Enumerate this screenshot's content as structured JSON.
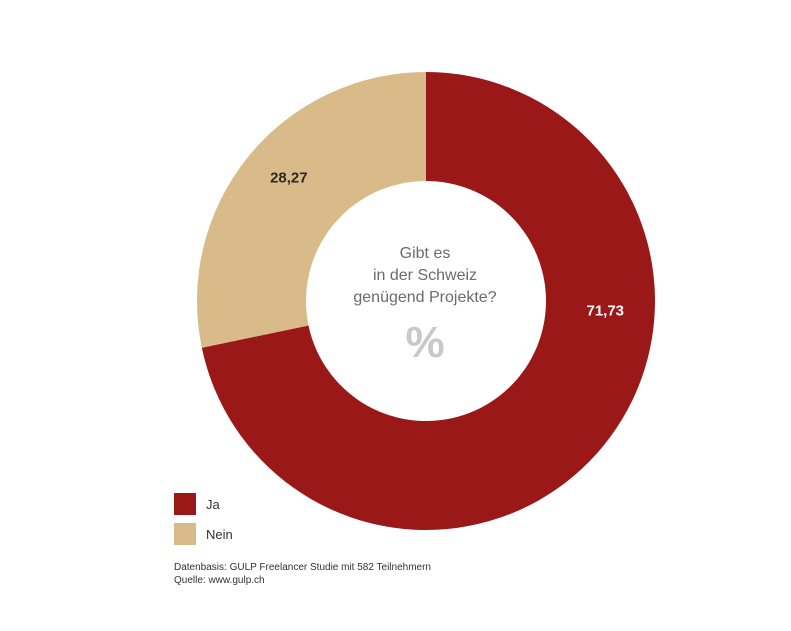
{
  "chart_data": {
    "type": "pie",
    "donut": true,
    "center_title_lines": [
      "Gibt es",
      "in der Schweiz",
      "genügend Projekte?"
    ],
    "center_unit": "%",
    "slices": [
      {
        "label": "Ja",
        "value": 71.73,
        "value_label": "71,73",
        "color": "#9b1818",
        "label_color": "#ffffff"
      },
      {
        "label": "Nein",
        "value": 28.27,
        "value_label": "28,27",
        "color": "#d9bb8a",
        "label_color": "#2a2a2a"
      }
    ],
    "legend": [
      {
        "label": "Ja",
        "color": "#9b1818"
      },
      {
        "label": "Nein",
        "color": "#d9bb8a"
      }
    ],
    "legend_position": "bottom-left",
    "source_lines": [
      "Datenbasis: GULP Freelancer Studie mit 582 Teilnehmern",
      "Quelle: www.gulp.ch"
    ]
  }
}
